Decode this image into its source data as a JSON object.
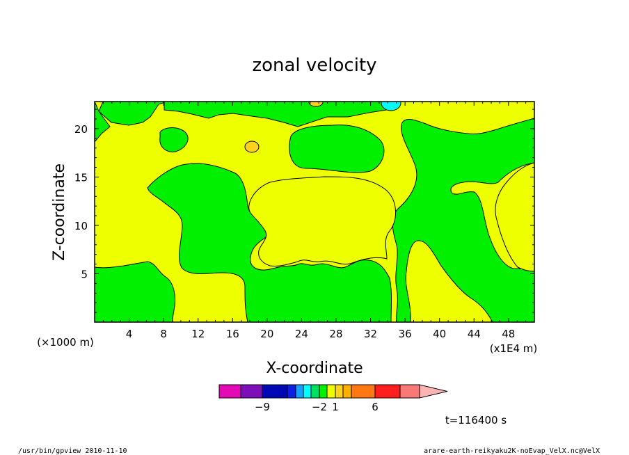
{
  "chart_data": {
    "type": "contour",
    "title": "zonal velocity",
    "xlabel": "X-coordinate",
    "ylabel": "Z-coordinate",
    "x_scale_label": "(×1000 m)",
    "x_scale_label_right": "(x1E4 m)",
    "xlim": [
      0,
      51
    ],
    "ylim": [
      0,
      22.8
    ],
    "x_ticks": [
      4,
      8,
      12,
      16,
      20,
      24,
      28,
      32,
      36,
      40,
      44,
      48
    ],
    "y_ticks": [
      5,
      10,
      15,
      20
    ],
    "colorbar": {
      "colors": [
        "#e10ab4",
        "#7d0fb9",
        "#0008b4",
        "#0a1ee6",
        "#18a0ff",
        "#00ffff",
        "#00e060",
        "#00f000",
        "#eeff00",
        "#ffd21e",
        "#ffb000",
        "#ff7814",
        "#ff1e1e",
        "#fa7878",
        "#ffb4b4"
      ],
      "labels": [
        {
          "text": "−9",
          "at_segment": 2
        },
        {
          "text": "−2",
          "at_segment": 7
        },
        {
          "text": "1",
          "at_segment": 9
        },
        {
          "text": "6",
          "at_segment": 12
        }
      ]
    },
    "time_label": "t=116400 s",
    "footer_left": "/usr/bin/gpview  2010-11-10",
    "footer_right": "arare-earth-reikyaku2K-noEvap_VelX.nc@VelX",
    "dominant_regions": [
      {
        "fill": "green",
        "range": "-1 to 0"
      },
      {
        "fill": "yellow",
        "range": "0 to 1"
      }
    ]
  }
}
